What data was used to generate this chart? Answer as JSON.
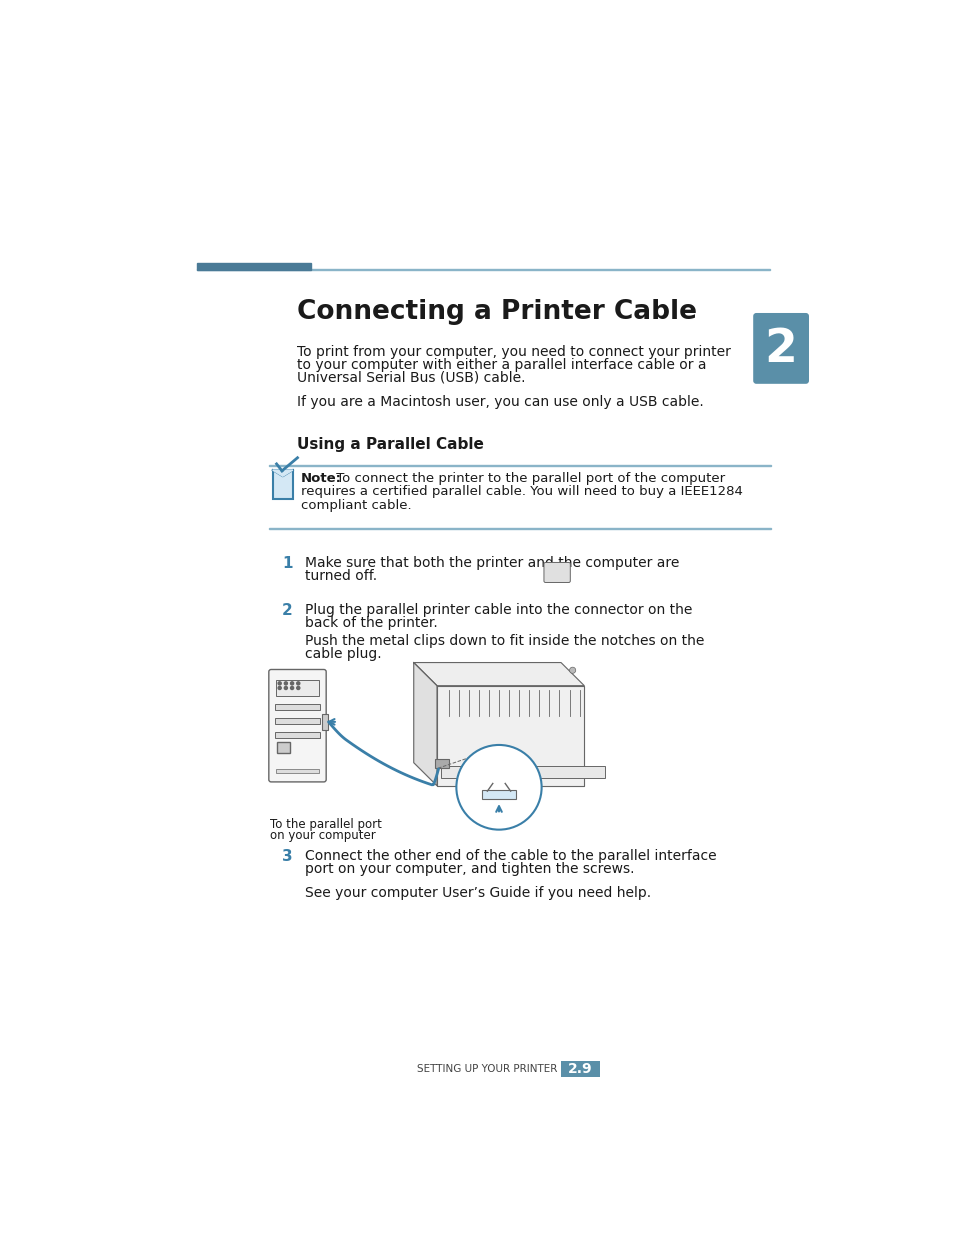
{
  "bg_color": "#ffffff",
  "header_bar_color_thick": "#4a7a96",
  "header_bar_color_thin": "#8ab4c8",
  "title": "Connecting a Printer Cable",
  "title_fontsize": 19,
  "section_tab_color": "#5a8fa8",
  "section_tab_number": "2",
  "body_fontsize": 10.0,
  "note_fontsize": 9.5,
  "small_fontsize": 8.5,
  "para1_line1": "To print from your computer, you need to connect your printer",
  "para1_line2": "to your computer with either a parallel interface cable or a",
  "para1_line3": "Universal Serial Bus (USB) cable.",
  "para2": "If you are a Macintosh user, you can use only a USB cable.",
  "section_heading": "Using a Parallel Cable",
  "step1_text_line1": "Make sure that both the printer and the computer are",
  "step1_text_line2": "turned off.",
  "step2_text_line1": "Plug the parallel printer cable into the connector on the",
  "step2_text_line2": "back of the printer.",
  "step2b_line1": "Push the metal clips down to fit inside the notches on the",
  "step2b_line2": "cable plug.",
  "caption_line1": "To the parallel port",
  "caption_line2": "on your computer",
  "step3_text_line1": "Connect the other end of the cable to the parallel interface",
  "step3_text_line2": "port on your computer, and tighten the screws.",
  "step3b": "See your computer User’s Guide if you need help.",
  "footer_text": "SETTING UP YOUR PRINTER",
  "footer_page": "2.9",
  "footer_color": "#5a8fa8",
  "teal_color": "#3a7fa8",
  "line_color": "#8ab4c8",
  "dark_color": "#1a1a1a",
  "gray_light": "#e0e0e0",
  "gray_mid": "#aaaaaa",
  "gray_dark": "#666666"
}
